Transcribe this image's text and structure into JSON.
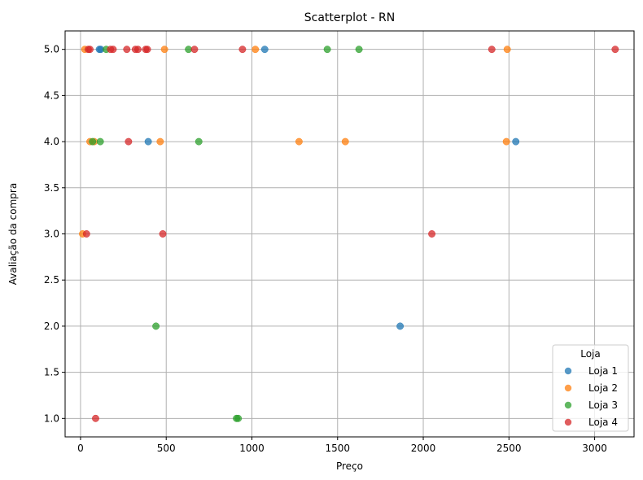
{
  "chart_data": {
    "type": "scatter",
    "title": "Scatterplot - RN",
    "xlabel": "Preço",
    "ylabel": "Avaliação da compra",
    "xlim": [
      -90,
      3230
    ],
    "ylim": [
      0.8,
      5.2
    ],
    "xticks": [
      0,
      500,
      1000,
      1500,
      2000,
      2500,
      3000
    ],
    "xtick_labels": [
      "0",
      "500",
      "1000",
      "1500",
      "2000",
      "2500",
      "3000"
    ],
    "yticks": [
      1.0,
      1.5,
      2.0,
      2.5,
      3.0,
      3.5,
      4.0,
      4.5,
      5.0
    ],
    "ytick_labels": [
      "1.0",
      "1.5",
      "2.0",
      "2.5",
      "3.0",
      "3.5",
      "4.0",
      "4.5",
      "5.0"
    ],
    "grid": true,
    "legend": {
      "title": "Loja",
      "placement": "lower right"
    },
    "series": [
      {
        "name": "Loja 1",
        "color": "#1f77b4",
        "points": [
          [
            110,
            5
          ],
          [
            118,
            5
          ],
          [
            1075,
            5
          ],
          [
            395,
            4
          ],
          [
            2540,
            4
          ],
          [
            1865,
            2
          ]
        ]
      },
      {
        "name": "Loja 2",
        "color": "#ff7f0e",
        "points": [
          [
            25,
            5
          ],
          [
            490,
            5
          ],
          [
            1020,
            5
          ],
          [
            2490,
            5
          ],
          [
            55,
            4
          ],
          [
            80,
            4
          ],
          [
            465,
            4
          ],
          [
            1275,
            4
          ],
          [
            1545,
            4
          ],
          [
            2485,
            4
          ],
          [
            12,
            3
          ]
        ]
      },
      {
        "name": "Loja 3",
        "color": "#2ca02c",
        "points": [
          [
            150,
            5
          ],
          [
            630,
            5
          ],
          [
            1440,
            5
          ],
          [
            1625,
            5
          ],
          [
            70,
            4
          ],
          [
            115,
            4
          ],
          [
            690,
            4
          ],
          [
            440,
            2
          ],
          [
            910,
            1
          ],
          [
            920,
            1
          ]
        ]
      },
      {
        "name": "Loja 4",
        "color": "#d62728",
        "points": [
          [
            45,
            5
          ],
          [
            55,
            5
          ],
          [
            175,
            5
          ],
          [
            190,
            5
          ],
          [
            270,
            5
          ],
          [
            320,
            5
          ],
          [
            335,
            5
          ],
          [
            380,
            5
          ],
          [
            390,
            5
          ],
          [
            665,
            5
          ],
          [
            945,
            5
          ],
          [
            2400,
            5
          ],
          [
            3120,
            5
          ],
          [
            280,
            4
          ],
          [
            35,
            3
          ],
          [
            480,
            3
          ],
          [
            2050,
            3
          ],
          [
            88,
            1
          ]
        ]
      }
    ]
  }
}
